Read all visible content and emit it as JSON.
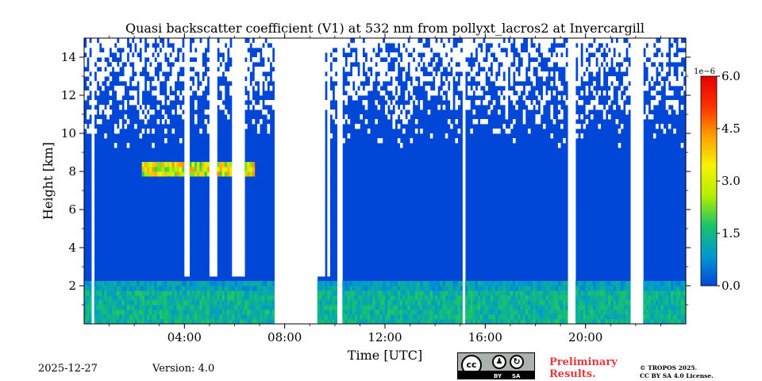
{
  "chart_data": {
    "type": "heatmap",
    "title": "Quasi backscatter coefficient (V1) at 532 nm from pollyxt_lacros2 at Invercargill",
    "xlabel": "Time [UTC]",
    "ylabel": "Height [km]",
    "x_unit": "hours UTC",
    "xlim": [
      0,
      24
    ],
    "ylim": [
      0,
      15
    ],
    "x_ticks": [
      4,
      8,
      12,
      16,
      20
    ],
    "x_tick_labels": [
      "04:00",
      "08:00",
      "12:00",
      "16:00",
      "20:00"
    ],
    "y_ticks": [
      2,
      4,
      6,
      8,
      10,
      12,
      14
    ],
    "y_tick_labels": [
      "2",
      "4",
      "6",
      "8",
      "10",
      "12",
      "14"
    ],
    "colorbar": {
      "min": 0.0,
      "max": 6.0,
      "ticks": [
        0.0,
        1.5,
        3.0,
        4.5,
        6.0
      ],
      "tick_labels": [
        "0.0",
        "1.5",
        "3.0",
        "4.5",
        "6.0"
      ],
      "multiplier": "1e−6",
      "colors": [
        "#0047d8",
        "#0099d0",
        "#19c36a",
        "#b3ee00",
        "#f6f300",
        "#ffa000",
        "#ff3000",
        "#e60000"
      ]
    },
    "missing_data_intervals_h": [
      [
        0.25,
        0.33
      ],
      [
        7.5,
        9.2
      ],
      [
        10.0,
        10.2
      ],
      [
        11.0,
        11.05
      ],
      [
        15.0,
        15.15
      ],
      [
        19.3,
        19.55
      ],
      [
        21.8,
        22.25
      ]
    ],
    "cloud_top_partial_h": [
      [
        3.95,
        4.15
      ],
      [
        4.95,
        5.25
      ],
      [
        5.85,
        6.0
      ],
      [
        6.05,
        6.3
      ],
      [
        9.2,
        9.55
      ],
      [
        9.6,
        9.75
      ]
    ],
    "aerosol_layer": {
      "height_km": 7.9,
      "time_range_h": [
        2.3,
        6.7
      ],
      "peak_value": 4.5
    },
    "boundary_layer": {
      "top_km": 1.6,
      "time_range_h": [
        0,
        24
      ]
    }
  },
  "footer": {
    "date": "2025-12-27",
    "version": "Version: 4.0",
    "preliminary_line1": "Preliminary",
    "preliminary_line2": "Results.",
    "copyright_line1": "© TROPOS 2025.",
    "copyright_line2": "CC BY SA 4.0 License.",
    "badge_by": "BY",
    "badge_sa": "SA",
    "badge_cc": "cc"
  }
}
